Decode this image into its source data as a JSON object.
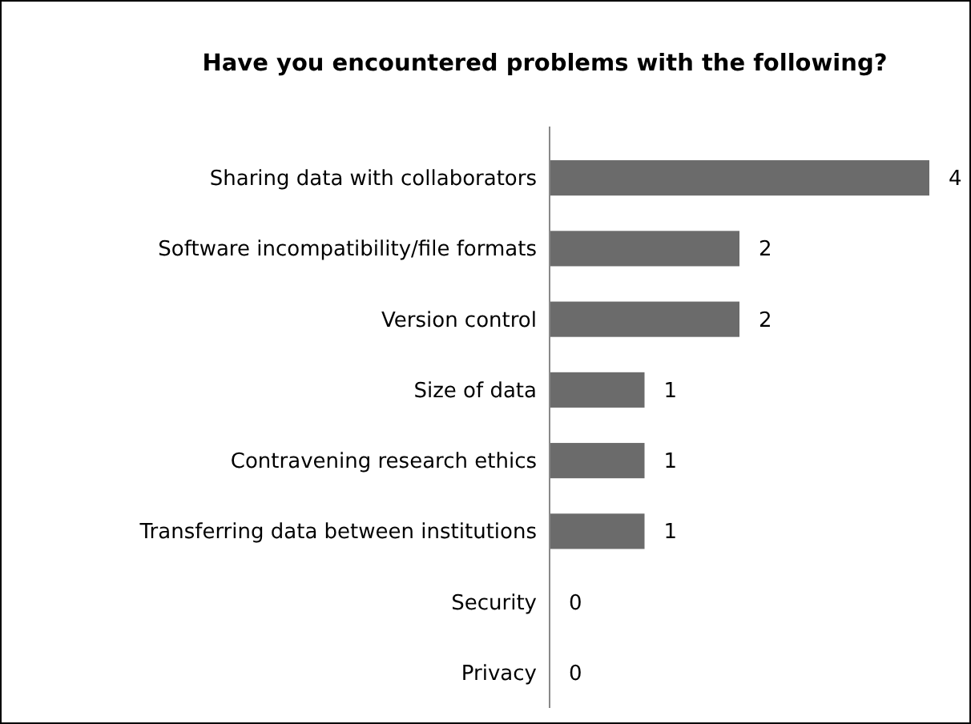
{
  "chart_data": {
    "type": "bar",
    "orientation": "horizontal",
    "title": "Have you encountered problems with the following?",
    "categories": [
      "Sharing data with collaborators",
      "Software incompatibility/file formats",
      "Version control",
      "Size of data",
      "Contravening research ethics",
      "Transferring data between institutions",
      "Security",
      "Privacy"
    ],
    "values": [
      4,
      2,
      2,
      1,
      1,
      1,
      0,
      0
    ],
    "color": "#6b6b6b",
    "data_labels": true
  }
}
